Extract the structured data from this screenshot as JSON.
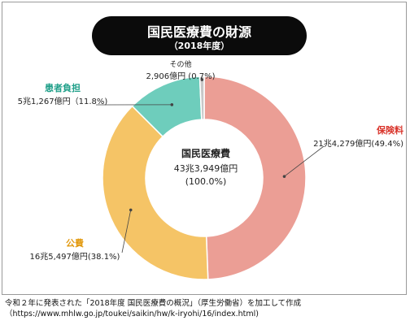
{
  "title": "国民医療費の財源",
  "subtitle": "（2018年度）",
  "center": {
    "name": "国民医療費",
    "amount": "43兆3,949億円",
    "percent": "(100.0%)"
  },
  "labels": {
    "hoken": {
      "name": "保険料",
      "value": "21兆4,279億円(49.4%)"
    },
    "kouhi": {
      "name": "公費",
      "value": "16兆5,497億円(38.1%)"
    },
    "kanja": {
      "name": "患者負担",
      "value": "5兆1,267億円（11.8%)"
    },
    "sonota": {
      "name": "その他",
      "value": "2,906億円 (0.7%)"
    }
  },
  "source": {
    "line1": "令和２年に発表された「2018年度 国民医療費の概況」（厚生労働省）を加工して作成",
    "line2": "（https://www.mhlw.go.jp/toukei/saikin/hw/k-iryohi/16/index.html)"
  },
  "chart_data": {
    "type": "pie",
    "style": "donut",
    "start": "top",
    "direction": "clockwise",
    "categories": [
      "保険料",
      "公費",
      "患者負担",
      "その他"
    ],
    "values": [
      49.4,
      38.1,
      11.8,
      0.7
    ],
    "colors": [
      "#eb9e95",
      "#f5c466",
      "#6ecdbc",
      "#c7c7c7"
    ],
    "title": "国民医療費の財源"
  }
}
